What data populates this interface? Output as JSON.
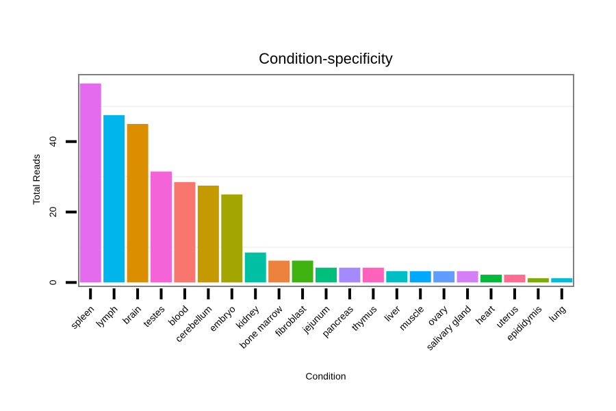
{
  "chart_data": {
    "type": "bar",
    "title": "Condition-specificity",
    "xlabel": "Condition",
    "ylabel": "Total Reads",
    "ylim": [
      -1.1,
      59
    ],
    "yticks": [
      0,
      20,
      40
    ],
    "gridlines": [
      10,
      30,
      50
    ],
    "categories": [
      "spleen",
      "lymph",
      "brain",
      "testes",
      "blood",
      "cerebellum",
      "embryo",
      "kidney",
      "bone marrow",
      "fibroblast",
      "jejunum",
      "pancreas",
      "thymus",
      "liver",
      "muscle",
      "ovary",
      "salivary gland",
      "heart",
      "uterus",
      "epididymis",
      "lung"
    ],
    "values": [
      56.5,
      47.5,
      45,
      31.5,
      28.5,
      27.5,
      25,
      8.5,
      6.2,
      6.2,
      4.2,
      4.2,
      4.2,
      3.2,
      3.2,
      3.2,
      3.2,
      2.2,
      2.2,
      1.2,
      1.2
    ],
    "colors": [
      "#E46AEE",
      "#00B4EC",
      "#DB8E00",
      "#F563D8",
      "#F8766D",
      "#C49A00",
      "#A3A500",
      "#00C0A4",
      "#EC823C",
      "#3FB20F",
      "#00BF7D",
      "#A58AFF",
      "#FF62BC",
      "#00BFC4",
      "#00A9FF",
      "#619CFF",
      "#D57FF4",
      "#00BA38",
      "#FF6C91",
      "#7CAE00",
      "#00BCD8"
    ]
  }
}
